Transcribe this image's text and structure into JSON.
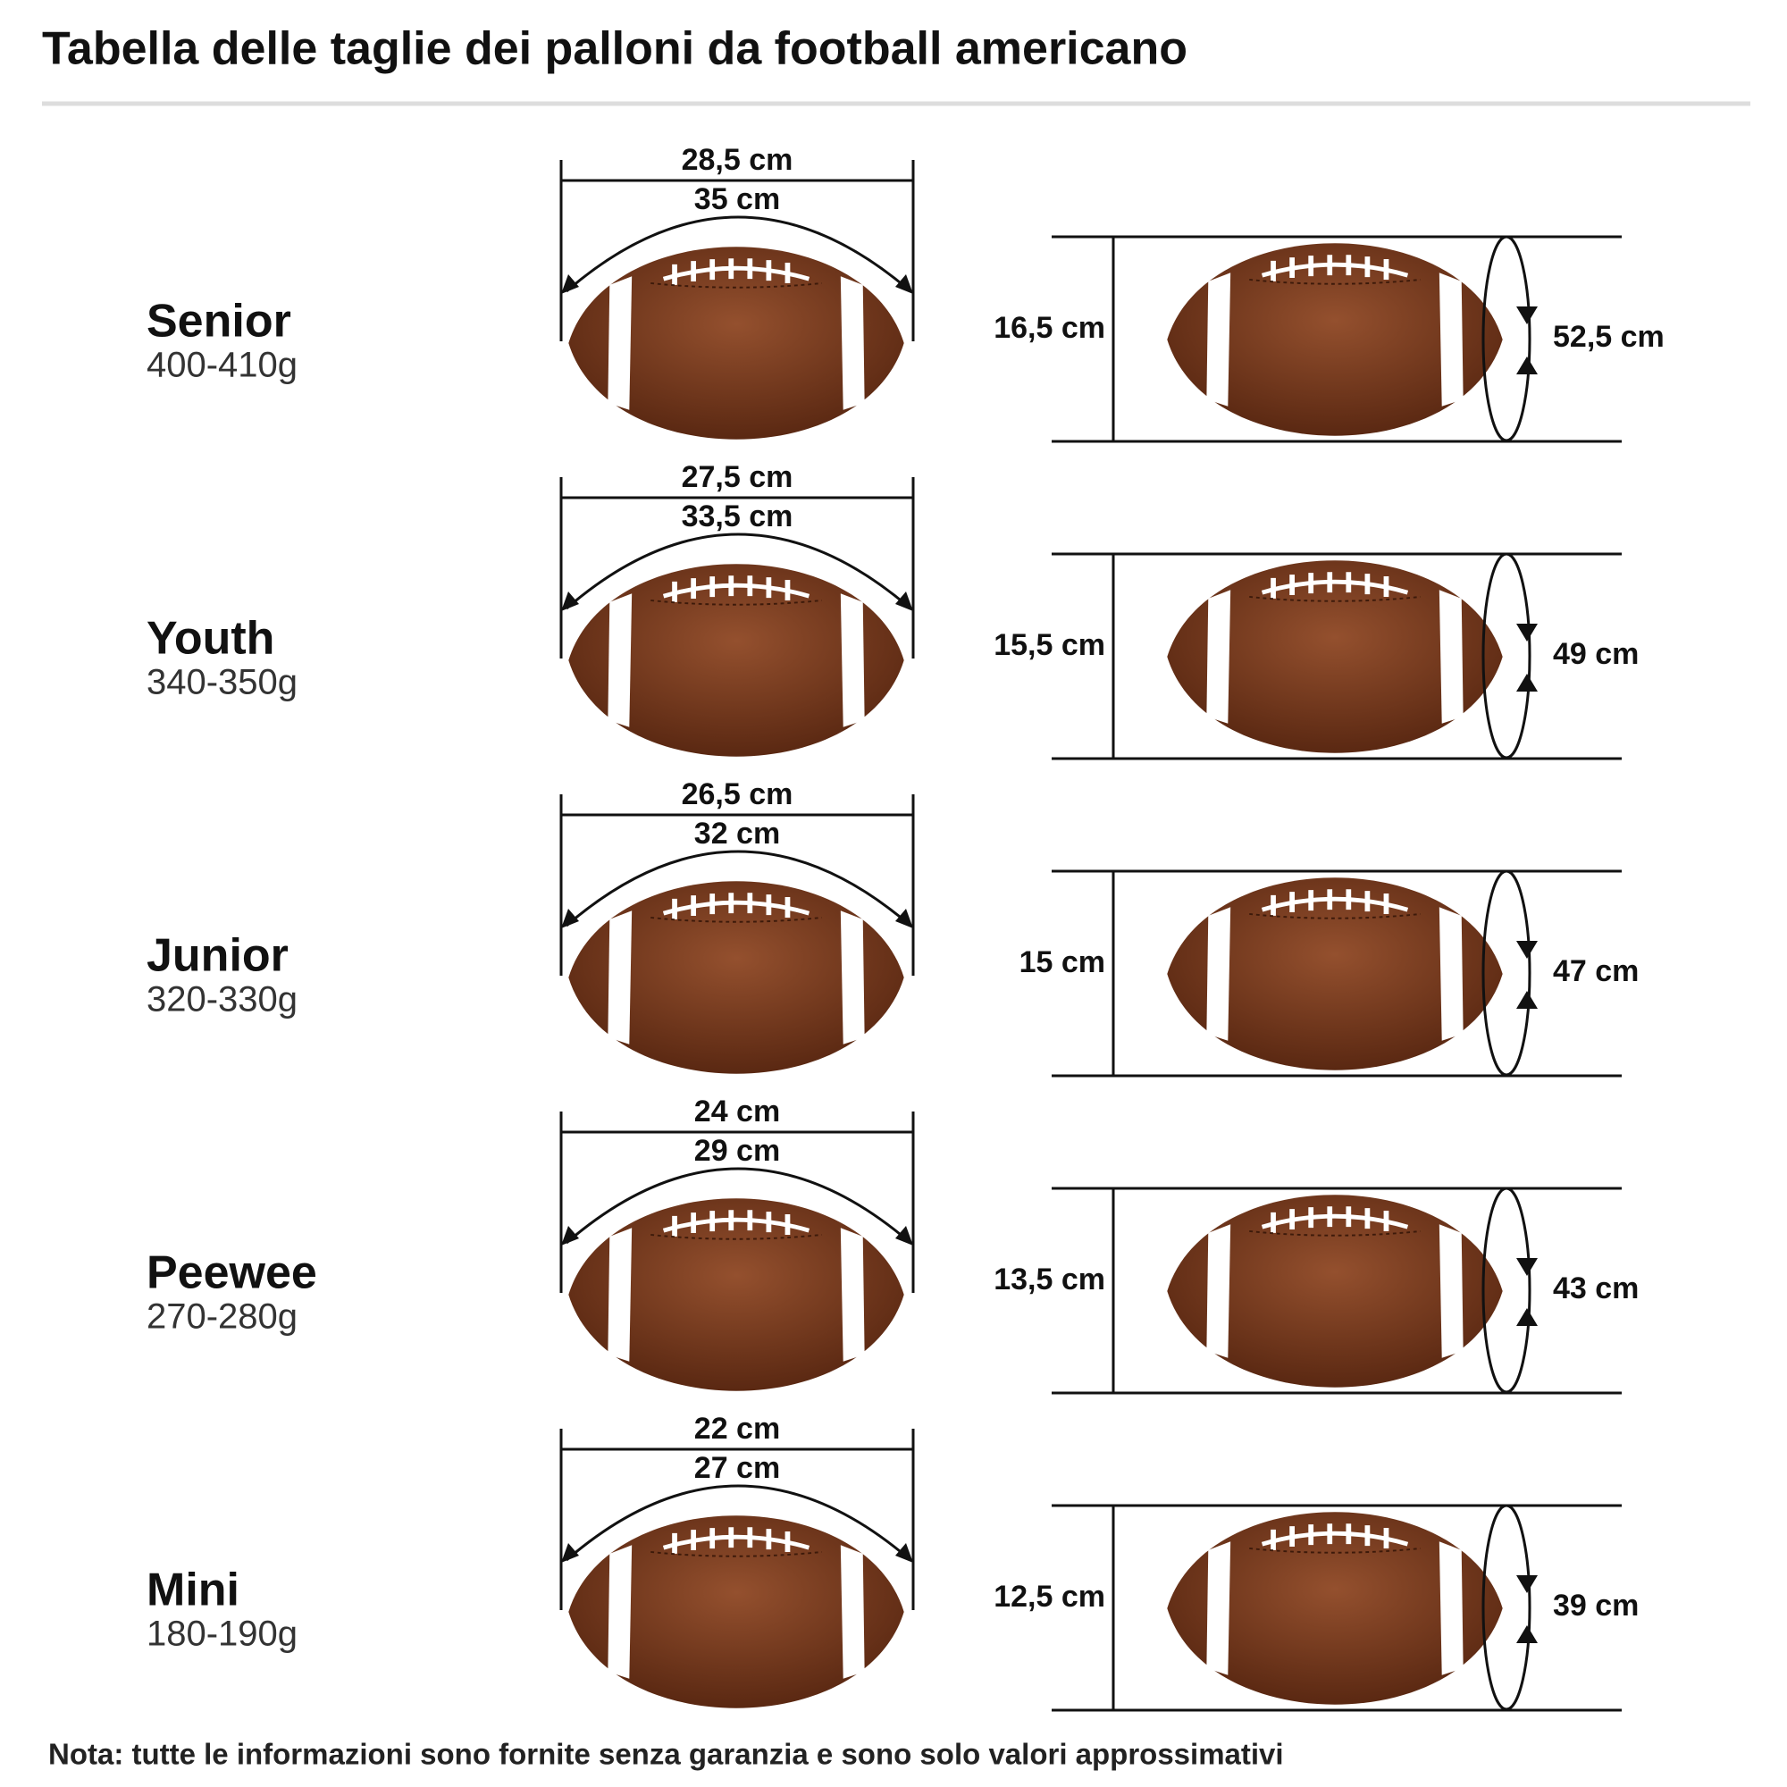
{
  "title": "Tabella delle taglie dei palloni da football americano",
  "sizes": [
    {
      "name": "Senior",
      "weight": "400-410g",
      "length": "28,5 cm",
      "long_circumference": "35 cm",
      "height": "16,5 cm",
      "circumference": "52,5 cm"
    },
    {
      "name": "Youth",
      "weight": "340-350g",
      "length": "27,5 cm",
      "long_circumference": "33,5 cm",
      "height": "15,5 cm",
      "circumference": "49 cm"
    },
    {
      "name": "Junior",
      "weight": "320-330g",
      "length": "26,5 cm",
      "long_circumference": "32 cm",
      "height": "15 cm",
      "circumference": "47 cm"
    },
    {
      "name": "Peewee",
      "weight": "270-280g",
      "length": "24 cm",
      "long_circumference": "29 cm",
      "height": "13,5 cm",
      "circumference": "43 cm"
    },
    {
      "name": "Mini",
      "weight": "180-190g",
      "length": "22 cm",
      "long_circumference": "27 cm",
      "height": "12,5 cm",
      "circumference": "39 cm"
    }
  ],
  "note": "Nota: tutte le informazioni sono fornite senza garanzia e sono solo valori approssimativi"
}
